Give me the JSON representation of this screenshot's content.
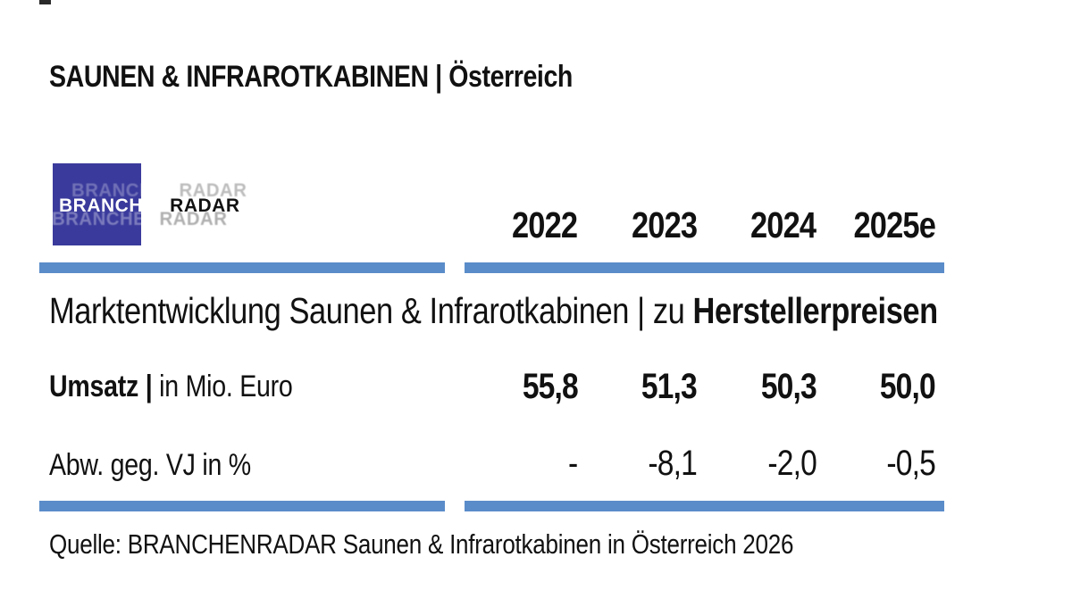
{
  "page": {
    "title": "SAUNEN & INFRAROTKABINEN | Österreich",
    "source_line": "Quelle: BRANCHENRADAR Saunen & Infrarotkabinen in Österreich 2026"
  },
  "logo": {
    "text_primary": "BRANCHEN",
    "text_secondary": "RADAR",
    "square_color": "#3A3A9C"
  },
  "table": {
    "accent_color": "#5A8CC9",
    "years": [
      "2022",
      "2023",
      "2024",
      "2025e"
    ],
    "section_header": {
      "regular": "Marktentwicklung Saunen & Infrarotkabinen | zu ",
      "bold": "Herstellerpreisen"
    },
    "rows": [
      {
        "label_bold": "Umsatz |",
        "label_regular": " in Mio. Euro",
        "values": [
          "55,8",
          "51,3",
          "50,3",
          "50,0"
        ]
      },
      {
        "label_bold": "",
        "label_regular": "Abw. geg. VJ in %",
        "values": [
          "-",
          "-8,1",
          "-2,0",
          "-0,5"
        ]
      }
    ]
  },
  "chart_data": {
    "type": "table",
    "title": "SAUNEN & INFRAROTKABINEN | Österreich",
    "section": "Marktentwicklung Saunen & Infrarotkabinen | zu Herstellerpreisen",
    "categories": [
      "2022",
      "2023",
      "2024",
      "2025e"
    ],
    "series": [
      {
        "name": "Umsatz | in Mio. Euro",
        "values": [
          55.8,
          51.3,
          50.3,
          50.0
        ]
      },
      {
        "name": "Abw. geg. VJ in %",
        "values": [
          null,
          -8.1,
          -2.0,
          -0.5
        ]
      }
    ],
    "source": "Quelle: BRANCHENRADAR Saunen & Infrarotkabinen in Österreich 2026"
  }
}
